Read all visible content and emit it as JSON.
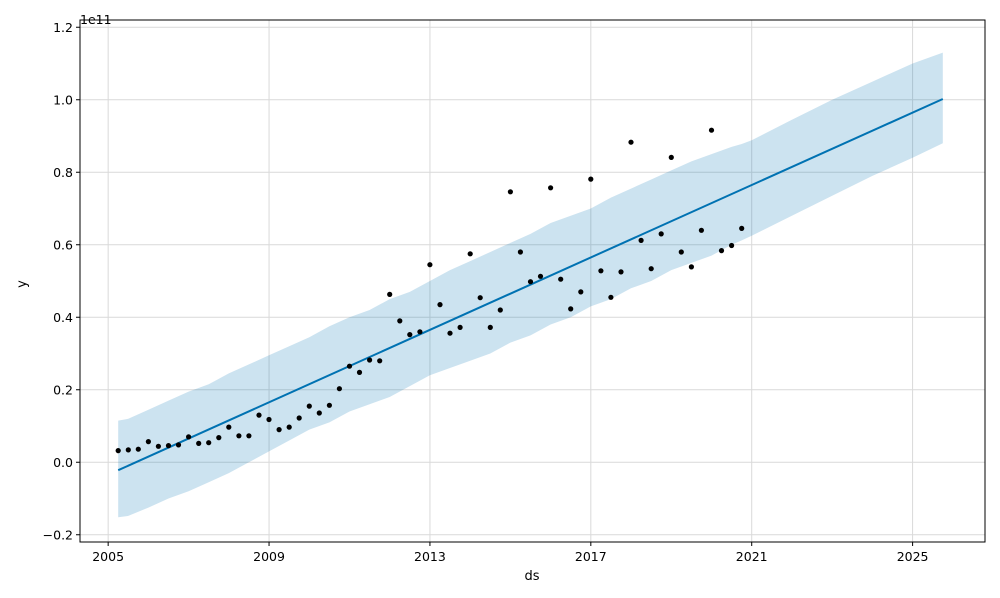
{
  "chart_data": {
    "type": "line",
    "xlabel": "ds",
    "ylabel": "y",
    "offset_label": "1e11",
    "xlim": [
      2004.3,
      2026.8
    ],
    "ylim": [
      -0.22,
      1.22
    ],
    "grid": true,
    "x_ticks": [
      2005,
      2009,
      2013,
      2017,
      2021,
      2025
    ],
    "x_tick_labels": [
      "2005",
      "2009",
      "2013",
      "2017",
      "2021",
      "2025"
    ],
    "y_ticks": [
      -0.2,
      0.0,
      0.2,
      0.4,
      0.6,
      0.8,
      1.0,
      1.2
    ],
    "y_tick_labels": [
      "−0.2",
      "0.0",
      "0.2",
      "0.4",
      "0.6",
      "0.8",
      "1.0",
      "1.2"
    ],
    "colors": {
      "forecast": "#0072B2",
      "interval": "#0072B2",
      "actual": "#000000",
      "grid": "#d9d9d9"
    },
    "series": [
      {
        "name": "",
        "kind": "actual",
        "x": [
          2005.25,
          2005.5,
          2005.75,
          2006.0,
          2006.25,
          2006.5,
          2006.75,
          2007.0,
          2007.25,
          2007.5,
          2007.75,
          2008.0,
          2008.25,
          2008.5,
          2008.75,
          2009.0,
          2009.25,
          2009.5,
          2009.75,
          2010.0,
          2010.25,
          2010.5,
          2010.75,
          2011.0,
          2011.25,
          2011.5,
          2011.75,
          2012.0,
          2012.25,
          2012.5,
          2012.75,
          2013.0,
          2013.25,
          2013.5,
          2013.75,
          2014.0,
          2014.25,
          2014.5,
          2014.75,
          2015.0,
          2015.25,
          2015.5,
          2015.75,
          2016.0,
          2016.25,
          2016.5,
          2016.75,
          2017.0,
          2017.25,
          2017.5,
          2017.75,
          2018.0,
          2018.25,
          2018.5,
          2018.75,
          2019.0,
          2019.25,
          2019.5,
          2019.75,
          2020.0,
          2020.25,
          2020.5,
          2020.75
        ],
        "y": [
          0.032,
          0.034,
          0.036,
          0.057,
          0.044,
          0.046,
          0.048,
          0.07,
          0.052,
          0.054,
          0.068,
          0.097,
          0.073,
          0.073,
          0.13,
          0.118,
          0.09,
          0.097,
          0.122,
          0.155,
          0.136,
          0.157,
          0.203,
          0.265,
          0.248,
          0.282,
          0.28,
          0.463,
          0.39,
          0.352,
          0.36,
          0.545,
          0.435,
          0.356,
          0.372,
          0.575,
          0.454,
          0.372,
          0.42,
          0.746,
          0.58,
          0.498,
          0.513,
          0.757,
          0.505,
          0.423,
          0.47,
          0.781,
          0.528,
          0.455,
          0.525,
          0.883,
          0.612,
          0.534,
          0.63,
          0.841,
          0.58,
          0.539,
          0.64,
          0.916,
          0.584,
          0.598,
          0.645
        ]
      },
      {
        "name": "",
        "kind": "forecast",
        "x": [
          2005.25,
          2025.75
        ],
        "y": [
          -0.022,
          1.002
        ]
      },
      {
        "name": "",
        "kind": "interval",
        "x": [
          2005.25,
          2005.5,
          2006.0,
          2006.5,
          2007.0,
          2007.5,
          2008.0,
          2008.5,
          2009.0,
          2009.5,
          2010.0,
          2010.5,
          2011.0,
          2011.5,
          2012.0,
          2012.5,
          2013.0,
          2013.5,
          2014.0,
          2014.5,
          2015.0,
          2015.5,
          2016.0,
          2016.5,
          2017.0,
          2017.5,
          2018.0,
          2018.5,
          2019.0,
          2019.5,
          2020.0,
          2020.5,
          2020.75,
          2021.0,
          2022.0,
          2023.0,
          2024.0,
          2025.0,
          2025.75
        ],
        "lower": [
          -0.152,
          -0.148,
          -0.125,
          -0.1,
          -0.08,
          -0.055,
          -0.03,
          0.0,
          0.03,
          0.06,
          0.09,
          0.11,
          0.14,
          0.16,
          0.18,
          0.21,
          0.24,
          0.26,
          0.28,
          0.3,
          0.33,
          0.35,
          0.38,
          0.4,
          0.43,
          0.45,
          0.48,
          0.5,
          0.53,
          0.55,
          0.57,
          0.6,
          0.612,
          0.625,
          0.68,
          0.735,
          0.79,
          0.84,
          0.88
        ],
        "upper": [
          0.115,
          0.12,
          0.145,
          0.17,
          0.195,
          0.215,
          0.245,
          0.27,
          0.295,
          0.32,
          0.345,
          0.375,
          0.4,
          0.42,
          0.45,
          0.47,
          0.5,
          0.53,
          0.555,
          0.58,
          0.605,
          0.63,
          0.66,
          0.68,
          0.7,
          0.73,
          0.755,
          0.78,
          0.805,
          0.83,
          0.85,
          0.87,
          0.878,
          0.888,
          0.945,
          1.0,
          1.05,
          1.1,
          1.13
        ]
      }
    ]
  }
}
